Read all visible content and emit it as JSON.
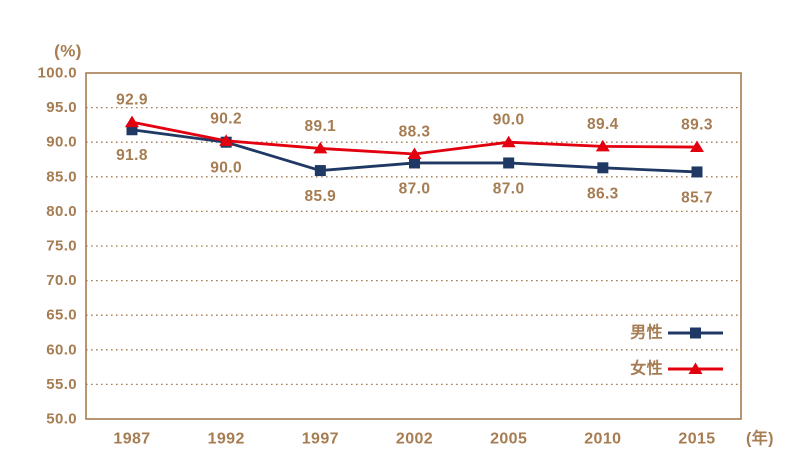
{
  "colors": {
    "background": "#ffffff",
    "text": "#a67c52",
    "axis": "#a67c52",
    "grid": "#a67c52"
  },
  "chart_data": {
    "type": "line",
    "title": "",
    "y_axis_unit": "(%)",
    "x_axis_unit": "(年)",
    "x_categories": [
      "1987",
      "1992",
      "1997",
      "2002",
      "2005",
      "2010",
      "2015"
    ],
    "ylim": [
      50,
      100
    ],
    "ytick_step": 5,
    "ytick_labels": [
      "100.0",
      "95.0",
      "90.0",
      "85.0",
      "80.0",
      "75.0",
      "70.0",
      "65.0",
      "60.0",
      "55.0",
      "50.0"
    ],
    "grid": "horizontal-dotted",
    "legend_position": "middle-right-inside",
    "value_label_decimals": 1,
    "series": [
      {
        "name": "男性",
        "color": "#1f3864",
        "marker": "square",
        "label_position": "below",
        "values": [
          91.8,
          90.0,
          85.9,
          87.0,
          87.0,
          86.3,
          85.7
        ]
      },
      {
        "name": "女性",
        "color": "#e3000f",
        "marker": "triangle",
        "label_position": "above",
        "values": [
          92.9,
          90.2,
          89.1,
          88.3,
          90.0,
          89.4,
          89.3
        ]
      }
    ]
  }
}
